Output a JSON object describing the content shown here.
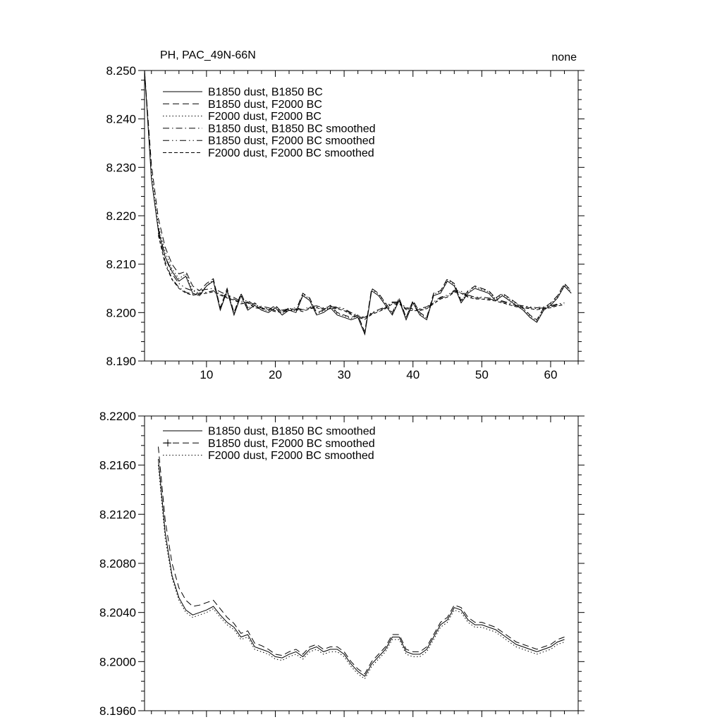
{
  "chart_data": [
    {
      "type": "line",
      "title": "PH, PAC_49N-66N",
      "corner_label": "none",
      "xlabel": "",
      "ylabel": "",
      "xlim": [
        1,
        64
      ],
      "ylim": [
        8.19,
        8.25
      ],
      "xticks": [
        10,
        20,
        30,
        40,
        50,
        60
      ],
      "xtick_labels": [
        "10",
        "20",
        "30",
        "40",
        "50",
        "60"
      ],
      "xtick_minor_step": 2,
      "yticks": [
        8.19,
        8.2,
        8.21,
        8.22,
        8.23,
        8.24,
        8.25
      ],
      "ytick_labels": [
        "8.190",
        "8.200",
        "8.210",
        "8.220",
        "8.230",
        "8.240",
        "8.250"
      ],
      "ytick_minor_step": 0.002,
      "grid": false,
      "legend_position": "upper-left-inside",
      "line_color": "#000000",
      "series": [
        {
          "name": "B1850 dust, B1850 BC",
          "style": "solid",
          "x_start": 1,
          "values": [
            8.25,
            8.2275,
            8.217,
            8.2115,
            8.2085,
            8.2065,
            8.2075,
            8.204,
            8.2035,
            8.2055,
            8.2065,
            8.2005,
            8.2045,
            8.1995,
            8.2035,
            8.2005,
            8.2015,
            8.2005,
            8.2,
            8.201,
            8.1995,
            8.2005,
            8.2,
            8.2035,
            8.2025,
            8.1995,
            8.2,
            8.201,
            8.1995,
            8.199,
            8.1985,
            8.199,
            8.1955,
            8.2045,
            8.2035,
            8.2015,
            8.1995,
            8.2025,
            8.1985,
            8.202,
            8.1995,
            8.1985,
            8.2035,
            8.204,
            8.2065,
            8.2055,
            8.202,
            8.204,
            8.205,
            8.2045,
            8.204,
            8.2025,
            8.2035,
            8.2025,
            8.2015,
            8.2005,
            8.199,
            8.198,
            8.2005,
            8.2015,
            8.203,
            8.2055,
            8.204
          ]
        },
        {
          "name": "B1850 dust, F2000 BC",
          "style": "dash",
          "x_start": 1,
          "values": [
            8.25,
            8.2305,
            8.2195,
            8.2135,
            8.21,
            8.208,
            8.2085,
            8.2055,
            8.2045,
            8.206,
            8.207,
            8.201,
            8.205,
            8.2,
            8.204,
            8.201,
            8.202,
            8.201,
            8.2005,
            8.2015,
            8.2,
            8.201,
            8.2005,
            8.204,
            8.203,
            8.2,
            8.2005,
            8.2015,
            8.2,
            8.1995,
            8.199,
            8.1995,
            8.196,
            8.205,
            8.204,
            8.202,
            8.2,
            8.203,
            8.199,
            8.2025,
            8.2,
            8.199,
            8.204,
            8.2045,
            8.207,
            8.206,
            8.2025,
            8.2045,
            8.2055,
            8.205,
            8.2045,
            8.203,
            8.204,
            8.203,
            8.202,
            8.201,
            8.1995,
            8.1985,
            8.201,
            8.202,
            8.2035,
            8.206,
            8.2045
          ]
        },
        {
          "name": "F2000 dust, F2000 BC",
          "style": "dot",
          "x_start": 1,
          "values": [
            8.25,
            8.229,
            8.218,
            8.2125,
            8.209,
            8.207,
            8.208,
            8.2045,
            8.204,
            8.2055,
            8.2068,
            8.2008,
            8.2048,
            8.1998,
            8.2038,
            8.2008,
            8.2018,
            8.2008,
            8.2003,
            8.2013,
            8.1998,
            8.2008,
            8.2003,
            8.2038,
            8.2028,
            8.1998,
            8.2003,
            8.2013,
            8.1998,
            8.1993,
            8.1988,
            8.1993,
            8.1958,
            8.2048,
            8.2038,
            8.2018,
            8.1998,
            8.2028,
            8.1988,
            8.2023,
            8.1998,
            8.1988,
            8.2038,
            8.2043,
            8.2068,
            8.2058,
            8.2023,
            8.2043,
            8.2053,
            8.2048,
            8.2043,
            8.2028,
            8.2038,
            8.2028,
            8.2018,
            8.2008,
            8.1993,
            8.1983,
            8.2008,
            8.2018,
            8.2033,
            8.2058,
            8.2043
          ]
        },
        {
          "name": "B1850 dust, B1850 BC smoothed",
          "style": "dashdot",
          "x_start": 3,
          "values": [
            8.2165,
            8.2105,
            8.207,
            8.2052,
            8.2042,
            8.2038,
            8.204,
            8.2042,
            8.2045,
            8.2038,
            8.2032,
            8.2028,
            8.202,
            8.2022,
            8.2012,
            8.201,
            8.2008,
            8.2004,
            8.2003,
            8.2006,
            8.2008,
            8.2004,
            8.201,
            8.2012,
            8.2008,
            8.201,
            8.201,
            8.2006,
            8.1998,
            8.1992,
            8.1988,
            8.1998,
            8.2004,
            8.201,
            8.202,
            8.202,
            8.2008,
            8.2006,
            8.2006,
            8.201,
            8.202,
            8.203,
            8.2034,
            8.2044,
            8.2042,
            8.2034,
            8.203,
            8.203,
            8.2028,
            8.2026,
            8.2022,
            8.2018,
            8.2014,
            8.2012,
            8.201,
            8.2008,
            8.201,
            8.2012,
            8.2016,
            8.2018
          ]
        },
        {
          "name": "B1850 dust, F2000 BC smoothed",
          "style": "dashdotdot",
          "x_start": 3,
          "values": [
            8.2175,
            8.2115,
            8.208,
            8.206,
            8.205,
            8.2045,
            8.2046,
            8.2048,
            8.205,
            8.2043,
            8.2036,
            8.2031,
            8.2023,
            8.2025,
            8.2015,
            8.2013,
            8.201,
            8.2006,
            8.2005,
            8.2008,
            8.201,
            8.2006,
            8.2012,
            8.2014,
            8.201,
            8.2012,
            8.2012,
            8.2008,
            8.2,
            8.1994,
            8.199,
            8.2,
            8.2006,
            8.2012,
            8.2022,
            8.2022,
            8.201,
            8.2008,
            8.2008,
            8.2012,
            8.2022,
            8.2032,
            8.2036,
            8.2046,
            8.2044,
            8.2036,
            8.2032,
            8.2032,
            8.203,
            8.2028,
            8.2024,
            8.202,
            8.2016,
            8.2014,
            8.2012,
            8.201,
            8.2012,
            8.2014,
            8.2018,
            8.202
          ]
        },
        {
          "name": "F2000 dust, F2000 BC smoothed",
          "style": "dash2",
          "x_start": 3,
          "values": [
            8.216,
            8.21,
            8.2068,
            8.205,
            8.204,
            8.2036,
            8.2038,
            8.204,
            8.2043,
            8.2036,
            8.203,
            8.2026,
            8.2018,
            8.202,
            8.201,
            8.2008,
            8.2006,
            8.2002,
            8.2001,
            8.2004,
            8.2006,
            8.2002,
            8.2008,
            8.201,
            8.2006,
            8.2008,
            8.2008,
            8.2004,
            8.1996,
            8.199,
            8.1986,
            8.1996,
            8.2002,
            8.2008,
            8.2018,
            8.2018,
            8.2006,
            8.2004,
            8.2004,
            8.2008,
            8.2018,
            8.2028,
            8.2032,
            8.2042,
            8.204,
            8.2032,
            8.2028,
            8.2028,
            8.2026,
            8.2024,
            8.202,
            8.2016,
            8.2012,
            8.201,
            8.2008,
            8.2006,
            8.2008,
            8.201,
            8.2014,
            8.2016
          ]
        }
      ]
    },
    {
      "type": "line",
      "title": "",
      "corner_label": "",
      "xlabel": "",
      "ylabel": "",
      "xlim": [
        1,
        64
      ],
      "ylim": [
        8.196,
        8.22
      ],
      "xticks": [
        10,
        20,
        30,
        40,
        50,
        60
      ],
      "xtick_labels": [],
      "xtick_minor_step": 2,
      "yticks": [
        8.196,
        8.2,
        8.204,
        8.208,
        8.212,
        8.216,
        8.22
      ],
      "ytick_labels": [
        "8.1960",
        "8.2000",
        "8.2040",
        "8.2080",
        "8.2120",
        "8.2160",
        "8.2200"
      ],
      "ytick_minor_step": 0.0008,
      "grid": false,
      "legend_position": "upper-left-inside",
      "line_color": "#000000",
      "series": [
        {
          "name": "B1850 dust, B1850 BC smoothed",
          "style": "solid",
          "x_start": 3,
          "values": [
            8.2165,
            8.2105,
            8.207,
            8.2052,
            8.2042,
            8.2038,
            8.204,
            8.2042,
            8.2045,
            8.2038,
            8.2032,
            8.2028,
            8.202,
            8.2022,
            8.2012,
            8.201,
            8.2008,
            8.2004,
            8.2003,
            8.2006,
            8.2008,
            8.2004,
            8.201,
            8.2012,
            8.2008,
            8.201,
            8.201,
            8.2006,
            8.1998,
            8.1992,
            8.1988,
            8.1998,
            8.2004,
            8.201,
            8.202,
            8.202,
            8.2008,
            8.2006,
            8.2006,
            8.201,
            8.202,
            8.203,
            8.2034,
            8.2044,
            8.2042,
            8.2034,
            8.203,
            8.203,
            8.2028,
            8.2026,
            8.2022,
            8.2018,
            8.2014,
            8.2012,
            8.201,
            8.2008,
            8.201,
            8.2012,
            8.2016,
            8.2018
          ]
        },
        {
          "name": "B1850 dust, F2000 BC smoothed",
          "style": "dash",
          "marker": "+",
          "x_start": 3,
          "values": [
            8.2175,
            8.2115,
            8.208,
            8.206,
            8.205,
            8.2045,
            8.2046,
            8.2048,
            8.205,
            8.2043,
            8.2036,
            8.2031,
            8.2023,
            8.2025,
            8.2015,
            8.2013,
            8.201,
            8.2006,
            8.2005,
            8.2008,
            8.201,
            8.2006,
            8.2012,
            8.2014,
            8.201,
            8.2012,
            8.2012,
            8.2008,
            8.2,
            8.1994,
            8.199,
            8.2,
            8.2006,
            8.2012,
            8.2022,
            8.2022,
            8.201,
            8.2008,
            8.2008,
            8.2012,
            8.2022,
            8.2032,
            8.2036,
            8.2046,
            8.2044,
            8.2036,
            8.2032,
            8.2032,
            8.203,
            8.2028,
            8.2024,
            8.202,
            8.2016,
            8.2014,
            8.2012,
            8.201,
            8.2012,
            8.2014,
            8.2018,
            8.202
          ]
        },
        {
          "name": "F2000 dust, F2000 BC smoothed",
          "style": "dot",
          "x_start": 3,
          "values": [
            8.216,
            8.21,
            8.2068,
            8.205,
            8.204,
            8.2036,
            8.2038,
            8.204,
            8.2043,
            8.2036,
            8.203,
            8.2026,
            8.2018,
            8.202,
            8.201,
            8.2008,
            8.2006,
            8.2002,
            8.2001,
            8.2004,
            8.2006,
            8.2002,
            8.2008,
            8.201,
            8.2006,
            8.2008,
            8.2008,
            8.2004,
            8.1996,
            8.199,
            8.1986,
            8.1996,
            8.2002,
            8.2008,
            8.2018,
            8.2018,
            8.2006,
            8.2004,
            8.2004,
            8.2008,
            8.2018,
            8.2028,
            8.2032,
            8.2042,
            8.204,
            8.2032,
            8.2028,
            8.2028,
            8.2026,
            8.2024,
            8.202,
            8.2016,
            8.2012,
            8.201,
            8.2008,
            8.2006,
            8.2008,
            8.201,
            8.2014,
            8.2016
          ]
        }
      ]
    }
  ]
}
